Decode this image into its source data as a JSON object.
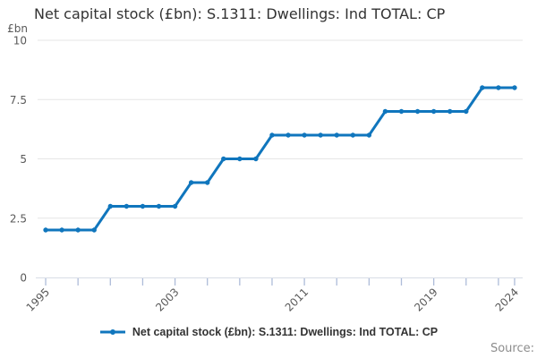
{
  "title": "Net capital stock (£bn): S.1311: Dwellings: Ind TOTAL: CP",
  "legend": {
    "label": "Net capital stock (£bn): S.1311: Dwellings: Ind TOTAL: CP"
  },
  "source": {
    "label": "Source:"
  },
  "y_axis": {
    "unit_label": "£bn",
    "ticks": [
      0,
      2.5,
      5,
      7.5,
      10
    ]
  },
  "x_axis": {
    "tick_interval_years": 2,
    "labeled_years": [
      "1995",
      "2003",
      "2011",
      "2019",
      "2024"
    ]
  },
  "colors": {
    "line": "#1076bd",
    "grid": "#e6e6e6",
    "axis_line": "#d8dde6",
    "tick": "#aebcd9",
    "axis_text": "#595959",
    "title_text": "#333333",
    "legend_text": "#333333",
    "source_text": "#8c8c8c"
  },
  "chart_data": {
    "type": "line",
    "title": "Net capital stock (£bn): S.1311: Dwellings: Ind TOTAL: CP",
    "ylabel": "£bn",
    "ylim": [
      0,
      10
    ],
    "y_ticks": [
      0,
      2.5,
      5,
      7.5,
      10
    ],
    "grid": "horizontal",
    "legend_position": "bottom",
    "x": [
      1995,
      1996,
      1997,
      1998,
      1999,
      2000,
      2001,
      2002,
      2003,
      2004,
      2005,
      2006,
      2007,
      2008,
      2009,
      2010,
      2011,
      2012,
      2013,
      2014,
      2015,
      2016,
      2017,
      2018,
      2019,
      2020,
      2021,
      2022,
      2023,
      2024
    ],
    "x_tick_labels": [
      "1995",
      "2003",
      "2011",
      "2019",
      "2024"
    ],
    "series": [
      {
        "name": "Net capital stock (£bn): S.1311: Dwellings: Ind TOTAL: CP",
        "values": [
          2,
          2,
          2,
          2,
          3,
          3,
          3,
          3,
          3,
          4,
          4,
          5,
          5,
          5,
          6,
          6,
          6,
          6,
          6,
          6,
          6,
          7,
          7,
          7,
          7,
          7,
          7,
          8,
          8,
          8
        ]
      }
    ]
  }
}
